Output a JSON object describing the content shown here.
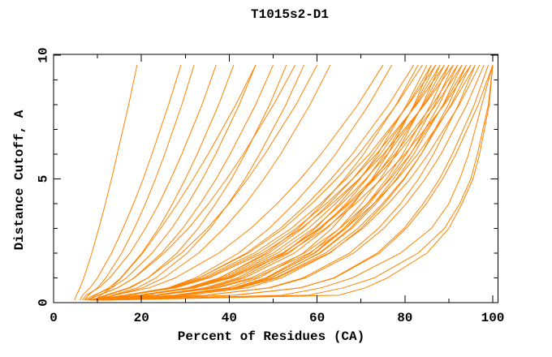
{
  "chart_data": {
    "type": "line",
    "title": "T1015s2-D1",
    "xlabel": "Percent of Residues (CA)",
    "ylabel": "Distance Cutoff, A",
    "xlim": [
      0,
      100
    ],
    "ylim": [
      0,
      10
    ],
    "grid": "off",
    "legend": "none",
    "x_major_ticks": [
      0,
      20,
      40,
      60,
      80,
      100
    ],
    "x_minor_ticks": [
      10,
      30,
      50,
      70,
      90
    ],
    "y_major_ticks": [
      0,
      5,
      10
    ],
    "y_minor_ticks": [
      1,
      2,
      3,
      4,
      6,
      7,
      8,
      9
    ],
    "line_color": "#ff8300",
    "axis_color": "#000000",
    "background": "#ffffff",
    "cutoffs": [
      0.1,
      0.3,
      0.6,
      1,
      2,
      3,
      4,
      5,
      6,
      8,
      9.6
    ],
    "series": [
      [
        4.8,
        5.2,
        6.0,
        6.9,
        8.7,
        10.3,
        11.8,
        13.2,
        14.5,
        17.1,
        19
      ],
      [
        6.0,
        6.6,
        8.3,
        10.0,
        13.2,
        15.8,
        18.2,
        20.4,
        22.4,
        26.2,
        29
      ],
      [
        7.0,
        7.9,
        10.0,
        11.9,
        15.5,
        18.4,
        20.9,
        23.2,
        25.3,
        29.2,
        32
      ],
      [
        6.5,
        7.4,
        10.3,
        12.8,
        17.4,
        20.9,
        24.0,
        26.7,
        29.2,
        33.8,
        37
      ],
      [
        8.0,
        9.4,
        12.6,
        15.3,
        20.1,
        23.9,
        27.1,
        30.0,
        32.7,
        37.6,
        41
      ],
      [
        7.0,
        9.1,
        13.2,
        16.6,
        22.4,
        26.9,
        30.6,
        33.9,
        36.9,
        42.3,
        46
      ],
      [
        9.5,
        10.7,
        13.1,
        15.4,
        20.3,
        24.4,
        28.2,
        31.8,
        35.2,
        41.5,
        46
      ],
      [
        7.5,
        10.3,
        14.6,
        18.3,
        24.6,
        29.4,
        33.4,
        37.0,
        40.2,
        46.0,
        50
      ],
      [
        9.0,
        12.2,
        17.5,
        21.5,
        28.1,
        32.9,
        36.9,
        40.5,
        43.6,
        49.2,
        53
      ],
      [
        8.0,
        10.1,
        14.6,
        18.4,
        25.2,
        30.7,
        35.3,
        39.4,
        43.2,
        50.1,
        55
      ],
      [
        9.8,
        13.4,
        19.1,
        23.3,
        30.4,
        35.6,
        39.8,
        43.6,
        46.9,
        52.9,
        57
      ],
      [
        8.5,
        11.8,
        17.1,
        21.5,
        29.1,
        35.0,
        39.9,
        44.2,
        48.1,
        55.2,
        60
      ],
      [
        9.2,
        13.9,
        20.3,
        25.1,
        33.0,
        38.8,
        43.7,
        47.9,
        51.7,
        58.4,
        63
      ],
      [
        8.0,
        13.8,
        21.8,
        27.7,
        37.6,
        44.9,
        50.9,
        56.2,
        60.9,
        69.3,
        75
      ],
      [
        10.5,
        17.3,
        26.1,
        32.3,
        42.1,
        49.1,
        54.8,
        59.8,
        64.2,
        71.8,
        77
      ],
      [
        9.0,
        16.8,
        26.5,
        33.2,
        43.9,
        51.6,
        57.8,
        63.2,
        68.0,
        76.3,
        82
      ],
      [
        11.0,
        20.8,
        31.1,
        37.9,
        48.4,
        55.7,
        61.3,
        66.2,
        70.6,
        78.0,
        83
      ],
      [
        8.2,
        16.1,
        26.2,
        33.2,
        44.3,
        52.4,
        58.8,
        64.4,
        69.5,
        78.1,
        84
      ],
      [
        10.2,
        23.0,
        34.5,
        41.9,
        52.5,
        59.6,
        65.1,
        69.8,
        73.8,
        80.4,
        85
      ],
      [
        9.4,
        19.4,
        30.4,
        37.7,
        49.0,
        56.7,
        62.8,
        68.1,
        72.7,
        80.7,
        86
      ],
      [
        11.5,
        27.5,
        39.7,
        46.8,
        56.8,
        63.4,
        68.3,
        72.5,
        76.1,
        82.1,
        86
      ],
      [
        8.6,
        16.4,
        26.9,
        34.1,
        45.7,
        54.1,
        60.8,
        66.6,
        71.9,
        80.8,
        87
      ],
      [
        10.8,
        23.3,
        35.2,
        42.7,
        53.6,
        60.9,
        66.6,
        71.3,
        75.4,
        82.3,
        87
      ],
      [
        9.6,
        19.7,
        31.0,
        38.5,
        50.0,
        58.0,
        64.2,
        69.6,
        74.4,
        82.5,
        88
      ],
      [
        12.0,
        28.7,
        41.1,
        48.3,
        58.5,
        65.1,
        70.1,
        74.4,
        78.0,
        84.0,
        88
      ],
      [
        8.4,
        16.6,
        27.3,
        34.8,
        46.7,
        55.2,
        62.1,
        68.1,
        73.5,
        82.7,
        89
      ],
      [
        10.4,
        23.6,
        35.8,
        43.5,
        54.8,
        62.2,
        68.0,
        72.9,
        77.1,
        84.2,
        89
      ],
      [
        9.7,
        19.9,
        31.5,
        39.2,
        51.0,
        59.2,
        65.6,
        71.1,
        76.0,
        84.4,
        90
      ],
      [
        11.2,
        28.3,
        41.2,
        48.7,
        59.3,
        66.1,
        71.4,
        75.8,
        79.5,
        85.9,
        90
      ],
      [
        8.8,
        16.8,
        27.8,
        35.4,
        47.6,
        56.4,
        63.4,
        69.6,
        75.1,
        84.5,
        91
      ],
      [
        10.6,
        27.7,
        40.9,
        48.6,
        59.5,
        66.5,
        71.9,
        76.4,
        80.3,
        86.8,
        91
      ],
      [
        9.9,
        20.2,
        32.1,
        39.9,
        52.1,
        60.4,
        67.0,
        72.6,
        77.7,
        86.3,
        92
      ],
      [
        11.4,
        28.7,
        41.9,
        49.6,
        60.5,
        67.5,
        72.9,
        77.4,
        81.3,
        87.8,
        92
      ],
      [
        9.1,
        19.4,
        31.6,
        39.7,
        52.1,
        60.7,
        67.4,
        73.2,
        78.3,
        87.1,
        93
      ],
      [
        10.9,
        28.1,
        41.7,
        49.5,
        60.7,
        67.9,
        73.4,
        78.1,
        82.0,
        88.7,
        93
      ],
      [
        9.3,
        23.6,
        36.7,
        45.0,
        57.1,
        65.2,
        71.4,
        76.7,
        81.2,
        88.8,
        94
      ],
      [
        11.6,
        30.5,
        44.1,
        51.9,
        62.9,
        70.0,
        75.3,
        79.9,
        83.7,
        89.9,
        94
      ],
      [
        9.0,
        19.7,
        32.1,
        40.4,
        53.1,
        61.9,
        68.8,
        74.7,
        80.0,
        89.0,
        95
      ],
      [
        10.7,
        28.6,
        42.4,
        50.5,
        61.9,
        69.3,
        74.9,
        79.7,
        83.7,
        90.5,
        95
      ],
      [
        9.5,
        23.9,
        37.3,
        45.9,
        58.2,
        66.5,
        72.9,
        78.3,
        82.9,
        90.7,
        96
      ],
      [
        11.8,
        34.8,
        49.0,
        56.8,
        67.4,
        74.0,
        79.0,
        83.1,
        86.5,
        92.2,
        96
      ],
      [
        10.0,
        28.2,
        42.5,
        50.9,
        62.7,
        70.4,
        76.2,
        81.2,
        85.3,
        92.4,
        97
      ],
      [
        11.0,
        34.6,
        49.3,
        57.4,
        68.3,
        75.2,
        80.3,
        84.6,
        88.2,
        94.1,
        98
      ],
      [
        10.3,
        41.3,
        56.2,
        63.8,
        73.7,
        79.8,
        84.2,
        87.9,
        90.8,
        95.8,
        99
      ],
      [
        9.8,
        41.0,
        56.2,
        64.0,
        74.2,
        80.3,
        84.9,
        88.6,
        91.6,
        96.7,
        100
      ],
      [
        11.3,
        52.0,
        61.0,
        68.0,
        79.0,
        86.0,
        90.0,
        92.5,
        94.5,
        97.5,
        100
      ],
      [
        10.9,
        58.0,
        66.0,
        73.0,
        83.0,
        89.0,
        92.5,
        95.0,
        96.5,
        99.0,
        100
      ],
      [
        12.5,
        65.0,
        71.0,
        76.0,
        85.0,
        90.0,
        93.0,
        95.5,
        97.0,
        99.2,
        100
      ]
    ]
  }
}
